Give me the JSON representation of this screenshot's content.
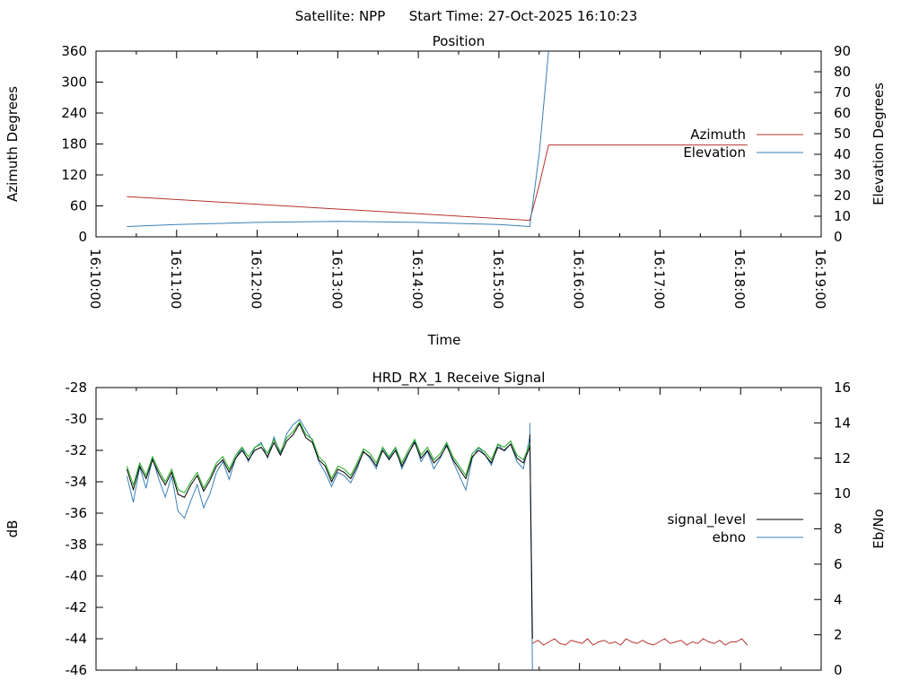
{
  "header": {
    "satellite_label": "Satellite: NPP",
    "start_time_label": "Start Time: 27-Oct-2025 16:10:23"
  },
  "chart_data": [
    {
      "type": "line",
      "title": "Position",
      "xlabel": "Time",
      "ylabel": "Azimuth Degrees",
      "y2label": "Elevation Degrees",
      "xlim": [
        "16:10:00",
        "16:19:00"
      ],
      "xticks": [
        "16:10:00",
        "16:11:00",
        "16:12:00",
        "16:13:00",
        "16:14:00",
        "16:15:00",
        "16:16:00",
        "16:17:00",
        "16:18:00",
        "16:19:00"
      ],
      "ylim": [
        0,
        360
      ],
      "yticks": [
        0,
        60,
        120,
        180,
        240,
        300,
        360
      ],
      "y2lim": [
        0,
        90
      ],
      "y2ticks": [
        0,
        10,
        20,
        30,
        40,
        50,
        60,
        70,
        80,
        90
      ],
      "legend_position": "right",
      "series": [
        {
          "name": "Azimuth",
          "axis": "left",
          "color": "#b5332f",
          "x": [
            "16:10:23",
            "16:15:23",
            "16:15:30",
            "16:15:37",
            "16:18:05"
          ],
          "y": [
            78,
            32,
            100,
            178,
            178
          ]
        },
        {
          "name": "Elevation",
          "axis": "right",
          "color": "#3a7fb5",
          "x": [
            "16:10:23",
            "16:11:00",
            "16:12:00",
            "16:13:00",
            "16:14:00",
            "16:15:00",
            "16:15:23",
            "16:15:30",
            "16:15:37"
          ],
          "y": [
            5,
            6,
            7,
            7.5,
            7,
            6,
            5,
            40,
            90
          ]
        }
      ]
    },
    {
      "type": "line",
      "title": "HRD_RX_1 Receive Signal",
      "ylabel": "dB",
      "y2label": "Eb/No",
      "ylim": [
        -46,
        -28
      ],
      "yticks": [
        -46,
        -44,
        -42,
        -40,
        -38,
        -36,
        -34,
        -32,
        -30,
        -28
      ],
      "y2lim": [
        0,
        16
      ],
      "y2ticks": [
        0,
        2,
        4,
        6,
        8,
        10,
        12,
        14,
        16
      ],
      "legend_position": "right",
      "series": [
        {
          "name": "signal_level",
          "axis": "left",
          "color": "#000000",
          "segments": [
            {
              "x_start": "16:10:23",
              "x_end": "16:15:23",
              "y": [
                -33.2,
                -34.5,
                -33.0,
                -33.8,
                -32.6,
                -33.5,
                -34.2,
                -33.4,
                -34.8,
                -35.0,
                -34.2,
                -33.6,
                -34.6,
                -33.9,
                -33.0,
                -32.6,
                -33.4,
                -32.5,
                -32.0,
                -32.6,
                -32.0,
                -31.8,
                -32.4,
                -31.5,
                -32.3,
                -31.4,
                -31.0,
                -30.3,
                -31.2,
                -31.5,
                -32.6,
                -33.0,
                -34.0,
                -33.2,
                -33.4,
                -33.8,
                -33.0,
                -32.1,
                -32.4,
                -33.0,
                -32.0,
                -32.6,
                -32.0,
                -33.0,
                -32.2,
                -31.5,
                -32.5,
                -32.0,
                -32.8,
                -32.4,
                -31.7,
                -32.6,
                -33.2,
                -33.8,
                -32.4,
                -32.0,
                -32.3,
                -32.8,
                -31.8,
                -32.0,
                -31.6,
                -32.5,
                -32.8,
                -31.8
              ]
            },
            {
              "x_start": "16:15:23",
              "x_end": "16:15:25",
              "y": [
                -31.0,
                -44.0
              ]
            }
          ]
        },
        {
          "name": "ebno",
          "axis": "right",
          "color": "#3a7fb5",
          "segments": [
            {
              "x_start": "16:10:23",
              "x_end": "16:15:23",
              "y": [
                11.0,
                9.5,
                11.5,
                10.3,
                12.0,
                10.8,
                9.8,
                11.0,
                9.0,
                8.6,
                9.6,
                10.5,
                9.2,
                10.0,
                11.2,
                11.8,
                10.8,
                12.0,
                12.6,
                11.8,
                12.6,
                12.9,
                12.0,
                13.2,
                12.2,
                13.4,
                13.9,
                14.2,
                13.6,
                13.0,
                11.8,
                11.2,
                10.4,
                11.2,
                11.0,
                10.6,
                11.4,
                12.4,
                12.0,
                11.4,
                12.6,
                12.0,
                12.6,
                11.4,
                12.2,
                13.0,
                11.8,
                12.4,
                11.4,
                12.0,
                12.8,
                11.8,
                11.0,
                10.2,
                12.0,
                12.6,
                12.2,
                11.6,
                12.8,
                12.4,
                12.8,
                11.8,
                11.4,
                13.2
              ]
            },
            {
              "x_start": "16:15:23",
              "x_end": "16:15:25",
              "y": [
                14.0,
                0.0
              ]
            }
          ]
        },
        {
          "name": "",
          "axis": "left",
          "color": "#22aa22",
          "segments": [
            {
              "x_start": "16:10:23",
              "x_end": "16:15:23",
              "y": [
                -33.0,
                -34.2,
                -32.8,
                -33.6,
                -32.4,
                -33.3,
                -34.0,
                -33.2,
                -34.5,
                -34.7,
                -34.0,
                -33.4,
                -34.4,
                -33.7,
                -32.8,
                -32.4,
                -33.2,
                -32.3,
                -31.8,
                -32.4,
                -31.8,
                -31.6,
                -32.2,
                -31.3,
                -32.1,
                -31.2,
                -30.8,
                -30.2,
                -31.0,
                -31.3,
                -32.4,
                -32.8,
                -33.8,
                -33.0,
                -33.2,
                -33.6,
                -32.8,
                -31.9,
                -32.2,
                -32.8,
                -31.8,
                -32.4,
                -31.8,
                -32.8,
                -32.0,
                -31.3,
                -32.3,
                -31.8,
                -32.6,
                -32.2,
                -31.5,
                -32.4,
                -33.0,
                -33.6,
                -32.2,
                -31.8,
                -32.1,
                -32.6,
                -31.6,
                -31.8,
                -31.4,
                -32.3,
                -32.6,
                -31.6
              ]
            }
          ]
        },
        {
          "name": "",
          "axis": "left",
          "color": "#b5332f",
          "segments": [
            {
              "x_start": "16:15:25",
              "x_end": "16:18:05",
              "y": [
                -44.3,
                -44.1,
                -44.4,
                -44.2,
                -44.0,
                -44.3,
                -44.4,
                -44.1,
                -44.2,
                -44.3,
                -44.0,
                -44.4,
                -44.2,
                -44.1,
                -44.3,
                -44.2,
                -44.4,
                -44.0,
                -44.2,
                -44.3,
                -44.1,
                -44.3,
                -44.4,
                -44.2,
                -44.0,
                -44.3,
                -44.2,
                -44.1,
                -44.4,
                -44.2,
                -44.3,
                -44.0,
                -44.2,
                -44.3,
                -44.1,
                -44.4,
                -44.2,
                -44.2,
                -44.0,
                -44.4
              ]
            }
          ]
        }
      ]
    }
  ]
}
